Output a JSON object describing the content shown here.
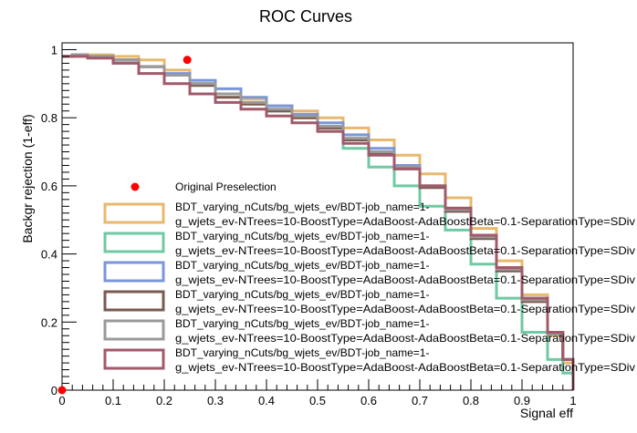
{
  "chart_data": {
    "type": "line",
    "title": "ROC Curves",
    "xlabel": "Signal eff",
    "ylabel": "Backgr rejection (1-eff)",
    "xlim": [
      0,
      1
    ],
    "ylim": [
      0,
      1.02
    ],
    "x_ticks": [
      "0",
      "0.1",
      "0.2",
      "0.3",
      "0.4",
      "0.5",
      "0.6",
      "0.7",
      "0.8",
      "0.9",
      "1"
    ],
    "y_ticks": [
      "0",
      "0.2",
      "0.4",
      "0.6",
      "0.8",
      "1"
    ],
    "grid": false,
    "legend_position": "center-left",
    "markers": {
      "name": "Original Preselection",
      "color": "#ff0000",
      "points": [
        {
          "x": 0.245,
          "y": 0.97
        },
        {
          "x": 0.0,
          "y": 0.0
        }
      ]
    },
    "series": [
      {
        "name": "BDT_varying_nCuts/bg_wjets_ev/BDT-job_name=1-g_wjets_ev-NTrees=10-BoostType=AdaBoost-AdaBoostBeta=0.1-SeparationType=SDiv",
        "color": "#e8b86d",
        "x": [
          0,
          0.02,
          0.05,
          0.1,
          0.15,
          0.2,
          0.25,
          0.3,
          0.35,
          0.4,
          0.45,
          0.5,
          0.55,
          0.6,
          0.65,
          0.7,
          0.75,
          0.8,
          0.85,
          0.9,
          0.95,
          0.98,
          1.0
        ],
        "y": [
          0.98,
          0.985,
          0.985,
          0.98,
          0.97,
          0.94,
          0.9,
          0.87,
          0.855,
          0.835,
          0.82,
          0.8,
          0.77,
          0.735,
          0.69,
          0.635,
          0.565,
          0.475,
          0.38,
          0.28,
          0.16,
          0.08,
          0.02
        ]
      },
      {
        "name": "BDT_varying_nCuts/bg_wjets_ev/BDT-job_name=1-g_wjets_ev-NTrees=10-BoostType=AdaBoost-AdaBoostBeta=0.1-SeparationType=SDiv",
        "color": "#6fc9a2",
        "x": [
          0,
          0.02,
          0.05,
          0.1,
          0.15,
          0.2,
          0.25,
          0.3,
          0.35,
          0.4,
          0.45,
          0.5,
          0.55,
          0.6,
          0.65,
          0.7,
          0.75,
          0.8,
          0.85,
          0.9,
          0.95,
          0.98,
          1.0
        ],
        "y": [
          0.98,
          0.985,
          0.98,
          0.97,
          0.95,
          0.925,
          0.9,
          0.87,
          0.845,
          0.82,
          0.8,
          0.76,
          0.71,
          0.655,
          0.6,
          0.54,
          0.47,
          0.37,
          0.27,
          0.17,
          0.09,
          0.05,
          0.02
        ]
      },
      {
        "name": "BDT_varying_nCuts/bg_wjets_ev/BDT-job_name=1-g_wjets_ev-NTrees=10-BoostType=AdaBoost-AdaBoostBeta=0.1-SeparationType=SDiv",
        "color": "#7a96d8",
        "x": [
          0,
          0.02,
          0.05,
          0.1,
          0.15,
          0.2,
          0.25,
          0.3,
          0.35,
          0.4,
          0.45,
          0.5,
          0.55,
          0.6,
          0.65,
          0.7,
          0.75,
          0.8,
          0.85,
          0.9,
          0.95,
          0.98,
          1.0
        ],
        "y": [
          0.98,
          0.985,
          0.98,
          0.97,
          0.95,
          0.93,
          0.91,
          0.885,
          0.86,
          0.835,
          0.81,
          0.785,
          0.75,
          0.71,
          0.66,
          0.6,
          0.53,
          0.45,
          0.36,
          0.27,
          0.17,
          0.09,
          0.02
        ]
      },
      {
        "name": "BDT_varying_nCuts/bg_wjets_ev/BDT-job_name=1-g_wjets_ev-NTrees=10-BoostType=AdaBoost-AdaBoostBeta=0.1-SeparationType=SDiv",
        "color": "#7a5a50",
        "x": [
          0,
          0.02,
          0.05,
          0.1,
          0.15,
          0.2,
          0.25,
          0.3,
          0.35,
          0.4,
          0.45,
          0.5,
          0.55,
          0.6,
          0.65,
          0.7,
          0.75,
          0.8,
          0.85,
          0.9,
          0.95,
          0.98,
          1.0
        ],
        "y": [
          0.98,
          0.985,
          0.98,
          0.97,
          0.95,
          0.925,
          0.895,
          0.86,
          0.84,
          0.82,
          0.8,
          0.77,
          0.735,
          0.695,
          0.65,
          0.595,
          0.525,
          0.445,
          0.35,
          0.26,
          0.165,
          0.09,
          0.02
        ]
      },
      {
        "name": "BDT_varying_nCuts/bg_wjets_ev/BDT-job_name=1-g_wjets_ev-NTrees=10-BoostType=AdaBoost-AdaBoostBeta=0.1-SeparationType=SDiv",
        "color": "#9a9a9a",
        "x": [
          0,
          0.02,
          0.05,
          0.1,
          0.15,
          0.2,
          0.25,
          0.3,
          0.35,
          0.4,
          0.45,
          0.5,
          0.55,
          0.6,
          0.65,
          0.7,
          0.75,
          0.8,
          0.85,
          0.9,
          0.95,
          0.98,
          1.0
        ],
        "y": [
          0.98,
          0.985,
          0.98,
          0.97,
          0.95,
          0.925,
          0.9,
          0.87,
          0.845,
          0.825,
          0.805,
          0.775,
          0.74,
          0.7,
          0.655,
          0.6,
          0.53,
          0.45,
          0.355,
          0.265,
          0.165,
          0.09,
          0.02
        ]
      },
      {
        "name": "BDT_varying_nCuts/bg_wjets_ev/BDT-job_name=1-g_wjets_ev-NTrees=10-BoostType=AdaBoost-AdaBoostBeta=0.1-SeparationType=SDiv",
        "color": "#a05a6a",
        "x": [
          0,
          0.02,
          0.05,
          0.1,
          0.15,
          0.2,
          0.25,
          0.3,
          0.35,
          0.4,
          0.45,
          0.5,
          0.55,
          0.6,
          0.65,
          0.7,
          0.75,
          0.8,
          0.85,
          0.9,
          0.95,
          0.98,
          1.0
        ],
        "y": [
          0.98,
          0.98,
          0.975,
          0.96,
          0.93,
          0.9,
          0.87,
          0.845,
          0.825,
          0.805,
          0.785,
          0.76,
          0.725,
          0.69,
          0.65,
          0.6,
          0.535,
          0.455,
          0.36,
          0.27,
          0.17,
          0.09,
          0.02
        ]
      }
    ]
  }
}
